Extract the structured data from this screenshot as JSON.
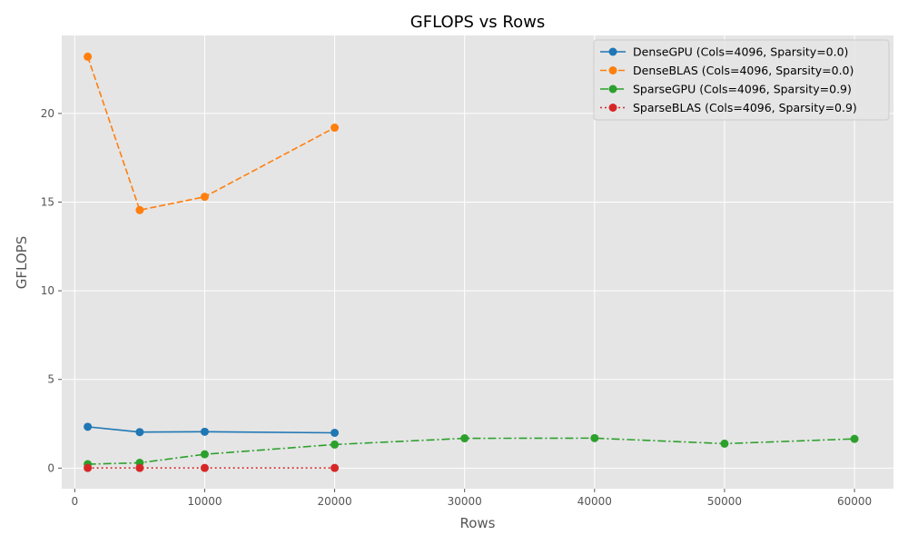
{
  "chart_data": {
    "type": "line",
    "title": "GFLOPS vs Rows",
    "xlabel": "Rows",
    "ylabel": "GFLOPS",
    "xlim": [
      -1000,
      63000
    ],
    "ylim": [
      -1.16,
      24.4
    ],
    "xticks": [
      0,
      10000,
      20000,
      30000,
      40000,
      50000,
      60000
    ],
    "xtick_labels": [
      "0",
      "10000",
      "20000",
      "30000",
      "40000",
      "50000",
      "60000"
    ],
    "yticks": [
      0,
      5,
      10,
      15,
      20
    ],
    "ytick_labels": [
      "0",
      "5",
      "10",
      "15",
      "20"
    ],
    "grid": true,
    "legend_position": "top-right",
    "series": [
      {
        "name": "DenseGPU (Cols=4096, Sparsity=0.0)",
        "color": "#1f77b4",
        "dash": "solid",
        "x": [
          1000,
          5000,
          10000,
          20000
        ],
        "y": [
          2.33,
          2.03,
          2.05,
          1.99
        ]
      },
      {
        "name": "DenseBLAS (Cols=4096, Sparsity=0.0)",
        "color": "#ff7f0e",
        "dash": "dashed",
        "x": [
          1000,
          5000,
          10000,
          20000
        ],
        "y": [
          23.2,
          14.55,
          15.3,
          19.2
        ]
      },
      {
        "name": "SparseGPU (Cols=4096, Sparsity=0.9)",
        "color": "#2ca02c",
        "dash": "dashdot",
        "x": [
          1000,
          5000,
          10000,
          20000,
          30000,
          40000,
          50000,
          60000
        ],
        "y": [
          0.22,
          0.3,
          0.78,
          1.33,
          1.68,
          1.69,
          1.38,
          1.65
        ]
      },
      {
        "name": "SparseBLAS (Cols=4096, Sparsity=0.9)",
        "color": "#d62728",
        "dash": "dotted",
        "x": [
          1000,
          5000,
          10000,
          20000
        ],
        "y": [
          0.01,
          0.01,
          0.01,
          0.01
        ]
      }
    ]
  }
}
